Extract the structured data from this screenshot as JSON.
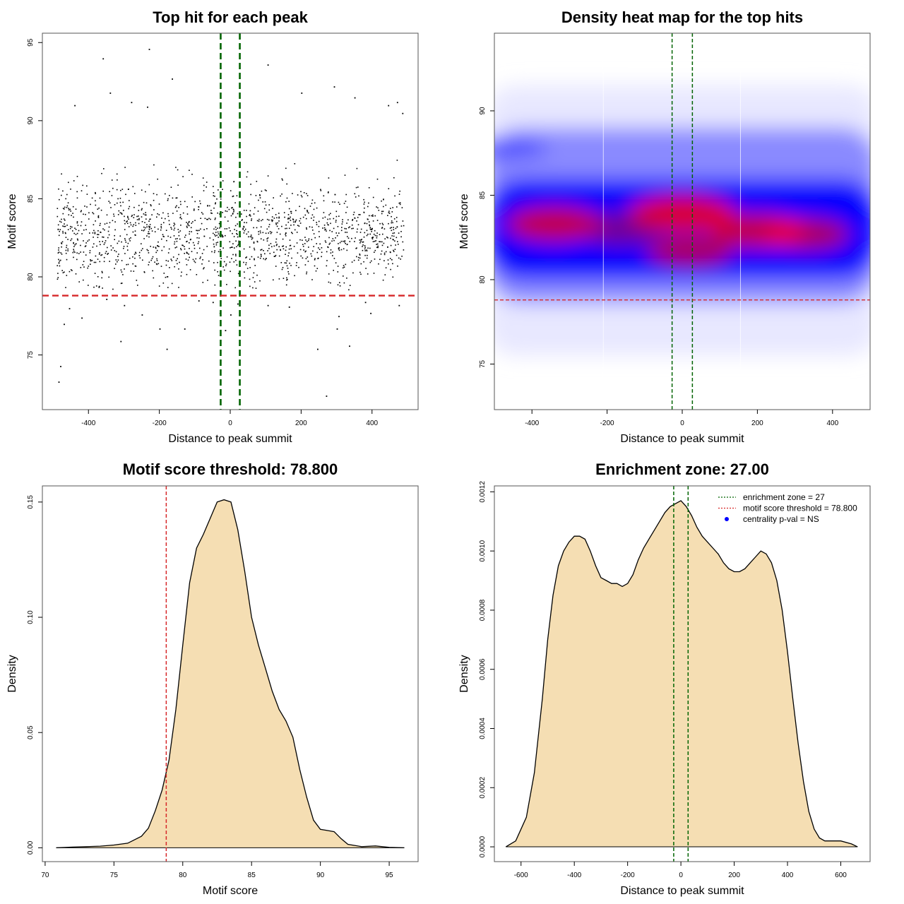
{
  "colors": {
    "threshold_line": "#d62728",
    "zone_line": "#006400",
    "density_fill": "#f5deb3",
    "points": "#000000",
    "heat_low": "#ffffff",
    "heat_mid": "#0000ff",
    "heat_high": "#ff0000",
    "legend_dot": "#0000ff"
  },
  "chart_data": [
    {
      "id": "scatter",
      "type": "scatter",
      "title": "Top hit for each peak",
      "xlabel": "Distance to peak summit",
      "ylabel": "Motif score",
      "xlim": [
        -530,
        530
      ],
      "ylim": [
        71.5,
        95.6
      ],
      "xticks": [
        -400,
        -200,
        0,
        200,
        400
      ],
      "xtick_labels": [
        "-400",
        "-200",
        "0",
        "200",
        "400"
      ],
      "yticks": [
        75,
        80,
        85,
        90,
        95
      ],
      "ytick_labels": [
        "75",
        "80",
        "85",
        "90",
        "95"
      ],
      "hlines": [
        78.8
      ],
      "vlines": [
        -27,
        27
      ],
      "points": [
        [
          -485,
          73.3
        ],
        [
          -480,
          74.3
        ],
        [
          -360,
          94.0
        ],
        [
          -230,
          94.6
        ],
        [
          -180,
          75.4
        ],
        [
          -310,
          75.9
        ],
        [
          -420,
          77.4
        ],
        [
          -200,
          76.7
        ],
        [
          -130,
          76.7
        ],
        [
          300,
          76.7
        ],
        [
          245,
          75.4
        ],
        [
          270,
          72.4
        ],
        [
          105,
          93.6
        ],
        [
          200,
          91.8
        ],
        [
          292,
          92.2
        ],
        [
          350,
          91.5
        ],
        [
          -440,
          91.0
        ],
        [
          -340,
          91.8
        ],
        [
          -235,
          90.9
        ],
        [
          -165,
          92.7
        ],
        [
          -280,
          91.2
        ],
        [
          445,
          91.0
        ],
        [
          470,
          91.2
        ],
        [
          485,
          90.5
        ],
        [
          -470,
          77.0
        ],
        [
          -350,
          78.6
        ],
        [
          -250,
          77.6
        ],
        [
          165,
          78.1
        ],
        [
          105,
          78.2
        ],
        [
          -90,
          78.5
        ],
        [
          380,
          78.4
        ],
        [
          475,
          78.2
        ],
        [
          395,
          77.7
        ],
        [
          305,
          77.5
        ],
        [
          -455,
          78.0
        ],
        [
          20,
          78.3
        ],
        [
          -30,
          77.7
        ],
        [
          -15,
          76.6
        ],
        [
          -50,
          78.4
        ],
        [
          0,
          77.6
        ],
        [
          335,
          75.6
        ],
        [
          -300,
          78.2
        ]
      ]
    },
    {
      "id": "heatmap",
      "type": "heatmap",
      "title": "Density heat map for the top hits",
      "xlabel": "Distance to peak summit",
      "ylabel": "Motif score",
      "xlim": [
        -500,
        500
      ],
      "ylim": [
        72.3,
        94.6
      ],
      "xticks": [
        -400,
        -200,
        0,
        200,
        400
      ],
      "xtick_labels": [
        "-400",
        "-200",
        "0",
        "200",
        "400"
      ],
      "yticks": [
        75,
        80,
        85,
        90
      ],
      "ytick_labels": [
        "75",
        "80",
        "85",
        "90"
      ],
      "hlines": [
        78.8
      ],
      "vlines": [
        -27,
        27
      ],
      "density_peaks": [
        {
          "x": -340,
          "y": 83.3,
          "weight": 0.9
        },
        {
          "x": 0,
          "y": 83.9,
          "weight": 1.0
        },
        {
          "x": 20,
          "y": 81.7,
          "weight": 0.8
        },
        {
          "x": 200,
          "y": 82.9,
          "weight": 0.9
        },
        {
          "x": 330,
          "y": 82.7,
          "weight": 0.8
        }
      ]
    },
    {
      "id": "score-density",
      "type": "area",
      "title": "Motif score threshold: 78.800",
      "xlabel": "Motif score",
      "ylabel": "Density",
      "xlim": [
        69.8,
        97.1
      ],
      "ylim": [
        -0.006,
        0.157
      ],
      "xticks": [
        70,
        75,
        80,
        85,
        90,
        95
      ],
      "xtick_labels": [
        "70",
        "75",
        "80",
        "85",
        "90",
        "95"
      ],
      "yticks": [
        0.0,
        0.05,
        0.1,
        0.15
      ],
      "ytick_labels": [
        "0.00",
        "0.05",
        "0.10",
        "0.15"
      ],
      "vlines": [
        78.8
      ],
      "x": [
        70.8,
        72,
        73,
        74,
        75,
        76,
        77,
        77.5,
        78,
        78.5,
        79,
        79.5,
        80,
        80.5,
        81,
        81.5,
        82,
        82.5,
        83,
        83.5,
        84,
        84.5,
        85,
        85.5,
        86,
        86.5,
        87,
        87.5,
        88,
        88.5,
        89,
        89.5,
        90,
        90.5,
        91,
        91.5,
        92,
        93,
        94,
        95,
        96.1
      ],
      "y": [
        0.0,
        0.0003,
        0.0005,
        0.0007,
        0.0012,
        0.002,
        0.005,
        0.0085,
        0.016,
        0.025,
        0.038,
        0.06,
        0.088,
        0.115,
        0.13,
        0.136,
        0.143,
        0.15,
        0.151,
        0.15,
        0.138,
        0.12,
        0.1,
        0.088,
        0.078,
        0.068,
        0.06,
        0.055,
        0.048,
        0.034,
        0.022,
        0.012,
        0.008,
        0.0075,
        0.007,
        0.004,
        0.0015,
        0.0005,
        0.0008,
        0.0002,
        0.0
      ]
    },
    {
      "id": "distance-density",
      "type": "area",
      "title": "Enrichment zone: 27.00",
      "xlabel": "Distance to peak summit",
      "ylabel": "Density",
      "xlim": [
        -700,
        710
      ],
      "ylim": [
        -5e-05,
        0.00122
      ],
      "xticks": [
        -600,
        -400,
        -200,
        0,
        200,
        400,
        600
      ],
      "xtick_labels": [
        "-600",
        "-400",
        "-200",
        "0",
        "200",
        "400",
        "600"
      ],
      "yticks": [
        0.0,
        0.0002,
        0.0004,
        0.0006,
        0.0008,
        0.001,
        0.0012
      ],
      "ytick_labels": [
        "0.0000",
        "0.0002",
        "0.0004",
        "0.0006",
        "0.0008",
        "0.0010",
        "0.0012"
      ],
      "vlines": [
        -27,
        27
      ],
      "x": [
        -657,
        -620,
        -580,
        -550,
        -520,
        -500,
        -480,
        -460,
        -440,
        -420,
        -400,
        -380,
        -360,
        -340,
        -320,
        -300,
        -280,
        -260,
        -240,
        -220,
        -200,
        -180,
        -160,
        -140,
        -120,
        -100,
        -80,
        -60,
        -40,
        -20,
        0,
        10,
        20,
        40,
        60,
        80,
        100,
        120,
        140,
        160,
        180,
        200,
        220,
        240,
        260,
        280,
        300,
        320,
        340,
        360,
        380,
        400,
        420,
        440,
        460,
        480,
        500,
        520,
        540,
        560,
        600,
        640,
        663
      ],
      "y": [
        0.0,
        2e-05,
        0.0001,
        0.00025,
        0.0005,
        0.0007,
        0.00085,
        0.00095,
        0.001,
        0.00103,
        0.00105,
        0.00105,
        0.00104,
        0.001,
        0.00095,
        0.00091,
        0.0009,
        0.00089,
        0.00089,
        0.00088,
        0.00089,
        0.00092,
        0.00097,
        0.00101,
        0.00104,
        0.00107,
        0.0011,
        0.00113,
        0.00115,
        0.00116,
        0.00117,
        0.00116,
        0.00115,
        0.00112,
        0.00108,
        0.00105,
        0.00103,
        0.00101,
        0.00099,
        0.00096,
        0.00094,
        0.00093,
        0.00093,
        0.00094,
        0.00096,
        0.00098,
        0.001,
        0.00099,
        0.00096,
        0.0009,
        0.0008,
        0.00066,
        0.0005,
        0.00035,
        0.00022,
        0.00012,
        6e-05,
        3e-05,
        2e-05,
        2e-05,
        2e-05,
        1e-05,
        0.0
      ],
      "legend": {
        "placement": "top-right",
        "entries": [
          {
            "label": "enrichment zone = 27",
            "style": "dotted-line",
            "color": "#006400"
          },
          {
            "label": "motif score threshold = 78.800",
            "style": "dotted-line",
            "color": "#d62728"
          },
          {
            "label": "centrality p-val = NS",
            "style": "dot",
            "color": "#0000ff"
          }
        ]
      }
    }
  ]
}
